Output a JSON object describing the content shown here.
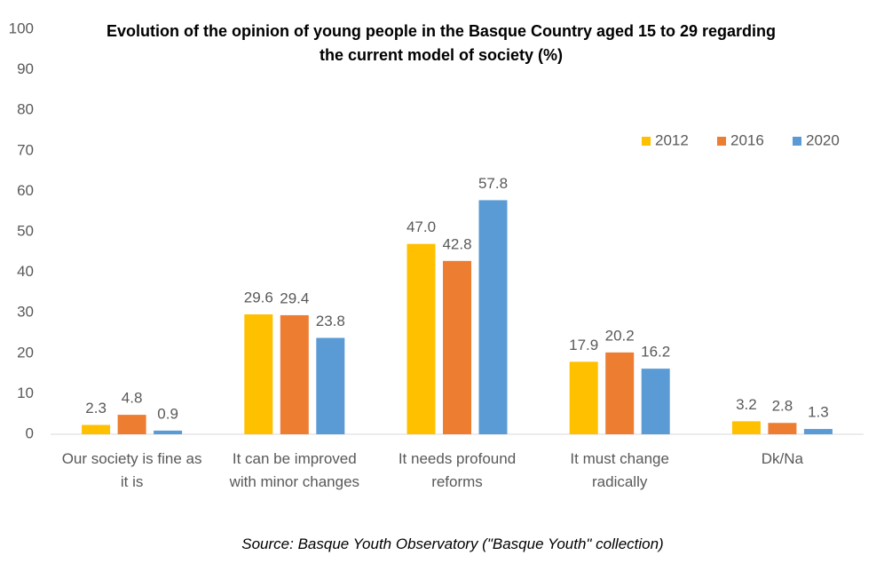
{
  "chart_data": {
    "type": "bar",
    "title": "Evolution of the opinion of young people in the Basque Country aged 15 to 29 regarding the current model of society (%)",
    "source": "Source: Basque Youth Observatory (\"Basque Youth\" collection)",
    "categories": [
      "Our society is fine as it is",
      "It can be improved with minor changes",
      "It needs profound reforms",
      "It must change radically",
      "Dk/Na"
    ],
    "series": [
      {
        "name": "2012",
        "color": "#ffc000",
        "values": [
          2.3,
          29.6,
          47.0,
          17.9,
          3.2
        ],
        "value_labels": [
          "2.3",
          "29.6",
          "47.0",
          "17.9",
          "3.2"
        ]
      },
      {
        "name": "2016",
        "color": "#ed7d31",
        "values": [
          4.8,
          29.4,
          42.8,
          20.2,
          2.8
        ],
        "value_labels": [
          "4.8",
          "29.4",
          "42.8",
          "20.2",
          "2.8"
        ]
      },
      {
        "name": "2020",
        "color": "#5b9bd5",
        "values": [
          0.9,
          23.8,
          57.8,
          16.2,
          1.3
        ],
        "value_labels": [
          "0.9",
          "23.8",
          "57.8",
          "16.2",
          "1.3"
        ]
      }
    ],
    "ylim": [
      0,
      100
    ],
    "yticks": [
      0,
      10,
      20,
      30,
      40,
      50,
      60,
      70,
      80,
      90,
      100
    ],
    "grid": false,
    "legend": "top-right"
  }
}
